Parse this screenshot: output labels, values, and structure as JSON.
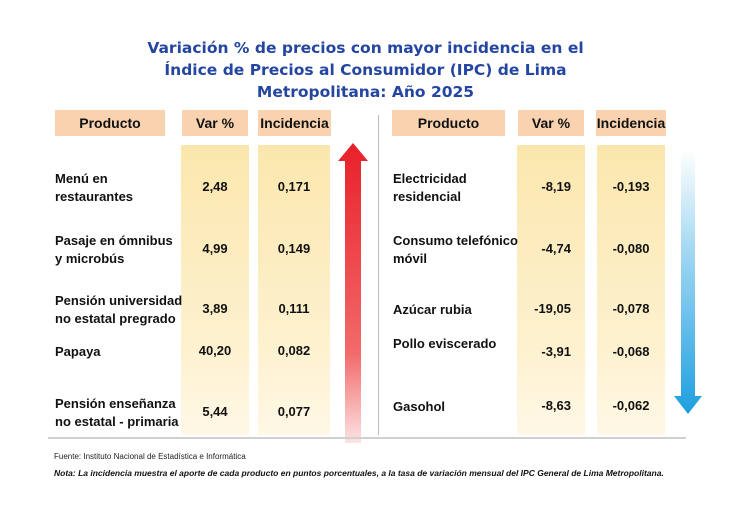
{
  "title": [
    "Variación % de precios con mayor incidencia en el",
    "Índice de Precios al Consumidor (IPC) de Lima",
    "Metropolitana: Año 2025"
  ],
  "headers": {
    "product": "Producto",
    "var": "Var %",
    "inc": "Incidencia"
  },
  "increases": [
    {
      "product": "Menú en restaurantes",
      "var": "2,48",
      "inc": "0,171"
    },
    {
      "product": "Pasaje en ómnibus y microbús",
      "var": "4,99",
      "inc": "0,149"
    },
    {
      "product": "Pensión universidad no estatal pregrado",
      "var": "3,89",
      "inc": "0,111"
    },
    {
      "product": "Papaya",
      "var": "40,20",
      "inc": "0,082"
    },
    {
      "product": "Pensión enseñanza no estatal - primaria",
      "var": "5,44",
      "inc": "0,077"
    }
  ],
  "decreases": [
    {
      "product": "Electricidad residencial",
      "var": "-8,19",
      "inc": "-0,193"
    },
    {
      "product": "Consumo telefónico móvil",
      "var": "-4,74",
      "inc": "-0,080"
    },
    {
      "product": "Azúcar rubia",
      "var": "-19,05",
      "inc": "-0,078"
    },
    {
      "product": "Pollo eviscerado",
      "var": "-3,91",
      "inc": "-0,068"
    },
    {
      "product": "Gasohol",
      "var": "-8,63",
      "inc": "-0,062"
    }
  ],
  "arrows": {
    "up_color": "#e8202a",
    "down_color": "#2aa6e0"
  },
  "source": "Fuente: Instituto Nacional de Estadística e Informática",
  "note": "Nota: La incidencia muestra el aporte de cada producto en puntos porcentuales, a la tasa de variación mensual del IPC General de Lima Metropolitana."
}
